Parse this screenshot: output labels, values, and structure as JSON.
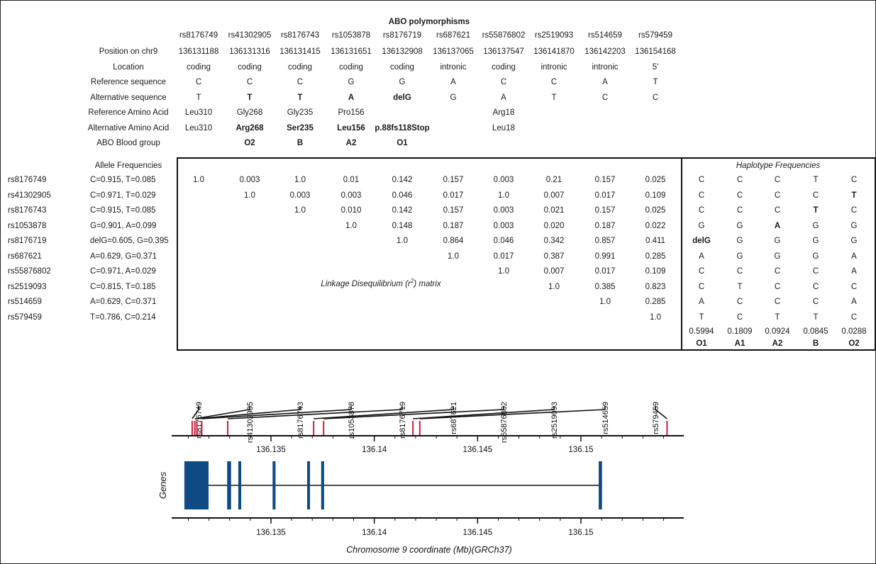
{
  "title": "ABO polymorphisms",
  "snps": [
    "rs8176749",
    "rs41302905",
    "rs8176743",
    "rs1053878",
    "rs8176719",
    "rs687621",
    "rs55876802",
    "rs2519093",
    "rs514659",
    "rs579459"
  ],
  "header_rows": [
    {
      "label": "Position on chr9",
      "values": [
        "136131188",
        "136131316",
        "136131415",
        "136131651",
        "136132908",
        "136137065",
        "136137547",
        "136141870",
        "136142203",
        "136154168"
      ],
      "bold": []
    },
    {
      "label": "Location",
      "values": [
        "coding",
        "coding",
        "coding",
        "coding",
        "coding",
        "intronic",
        "coding",
        "intronic",
        "intronic",
        "5'"
      ],
      "bold": []
    },
    {
      "label": "Reference sequence",
      "values": [
        "C",
        "C",
        "C",
        "G",
        "G",
        "A",
        "C",
        "C",
        "A",
        "T"
      ],
      "bold": []
    },
    {
      "label": "Alternative sequence",
      "values": [
        "T",
        "T",
        "T",
        "A",
        "delG",
        "G",
        "A",
        "T",
        "C",
        "C"
      ],
      "bold": [
        1,
        2,
        3,
        4
      ]
    },
    {
      "label": "Reference Amino Acid",
      "values": [
        "Leu310",
        "Gly268",
        "Gly235",
        "Pro156",
        "",
        "",
        "Arg18",
        "",
        "",
        ""
      ],
      "bold": []
    },
    {
      "label": "Alternative Amino Acid",
      "values": [
        "Leu310",
        "Arg268",
        "Ser235",
        "Leu156",
        "p.88fs118Stop",
        "",
        "Leu18",
        "",
        "",
        ""
      ],
      "bold": [
        1,
        2,
        3,
        4
      ]
    },
    {
      "label": "ABO Blood group",
      "values": [
        "",
        "O2",
        "B",
        "A2",
        "O1",
        "",
        "",
        "",
        "",
        ""
      ],
      "bold": [
        1,
        2,
        3,
        4
      ]
    }
  ],
  "allele_header": "Allele Frequencies",
  "allele_frequencies": [
    "C=0.915, T=0.085",
    "C=0.971, T=0.029",
    "C=0.915, T=0.085",
    "G=0.901, A=0.099",
    "delG=0.605, G=0.395",
    "A=0.629, G=0.371",
    "C=0.971, A=0.029",
    "C=0.815, T=0.185",
    "A=0.629, C=0.371",
    "T=0.786, C=0.214"
  ],
  "ld_matrix": [
    [
      "1.0",
      "0.003",
      "1.0",
      "0.01",
      "0.142",
      "0.157",
      "0.003",
      "0.21",
      "0.157",
      "0.025"
    ],
    [
      "",
      "1.0",
      "0.003",
      "0.003",
      "0.046",
      "0.017",
      "1.0",
      "0.007",
      "0.017",
      "0.109"
    ],
    [
      "",
      "",
      "1.0",
      "0.010",
      "0.142",
      "0.157",
      "0.003",
      "0.021",
      "0.157",
      "0.025"
    ],
    [
      "",
      "",
      "",
      "1.0",
      "0.148",
      "0.187",
      "0.003",
      "0.020",
      "0.187",
      "0.022"
    ],
    [
      "",
      "",
      "",
      "",
      "1.0",
      "0.864",
      "0.046",
      "0.342",
      "0.857",
      "0.411"
    ],
    [
      "",
      "",
      "",
      "",
      "",
      "1.0",
      "0.017",
      "0.387",
      "0.991",
      "0.285"
    ],
    [
      "",
      "",
      "",
      "",
      "",
      "",
      "1.0",
      "0.007",
      "0.017",
      "0.109"
    ],
    [
      "",
      "",
      "",
      "",
      "",
      "",
      "",
      "1.0",
      "0.385",
      "0.823"
    ],
    [
      "",
      "",
      "",
      "",
      "",
      "",
      "",
      "",
      "1.0",
      "0.285"
    ],
    [
      "",
      "",
      "",
      "",
      "",
      "",
      "",
      "",
      "",
      "1.0"
    ]
  ],
  "ld_label_pre": "Linkage Disequilibrium (r",
  "ld_label_sup": "2",
  "ld_label_post": ") matrix",
  "haplotype_title": "Haplotype Frequencies",
  "haplotypes": [
    [
      "C",
      "C",
      "C",
      "T",
      "C"
    ],
    [
      "C",
      "C",
      "C",
      "C",
      "T"
    ],
    [
      "C",
      "C",
      "C",
      "T",
      "C"
    ],
    [
      "G",
      "G",
      "A",
      "G",
      "G"
    ],
    [
      "delG",
      "G",
      "G",
      "G",
      "G"
    ],
    [
      "A",
      "G",
      "G",
      "G",
      "A"
    ],
    [
      "C",
      "C",
      "C",
      "C",
      "A"
    ],
    [
      "C",
      "T",
      "C",
      "C",
      "C"
    ],
    [
      "A",
      "C",
      "C",
      "C",
      "A"
    ],
    [
      "T",
      "C",
      "T",
      "T",
      "C"
    ]
  ],
  "haplotype_bold": [
    [
      1,
      4
    ],
    [
      2,
      3
    ],
    [
      3,
      2
    ],
    [
      4,
      0
    ]
  ],
  "haplotype_freqs": [
    "0.5994",
    "0.1809",
    "0.0924",
    "0.0845",
    "0.0288"
  ],
  "haplotype_groups": [
    "O1",
    "A1",
    "A2",
    "B",
    "O2"
  ],
  "snp_positions_mb": [
    136.131188,
    136.131316,
    136.131415,
    136.131651,
    136.132908,
    136.137065,
    136.137547,
    136.14187,
    136.142203,
    136.154168
  ],
  "axis_ticks": [
    "136.135",
    "136.14",
    "136.145",
    "136.15"
  ],
  "axis_tick_values": [
    136.135,
    136.14,
    136.145,
    136.15
  ],
  "genes_label": "Genes",
  "axis_title": "Chromosome 9 coordinate (Mb)(GRCh37)",
  "colors": {
    "snp_marker": "#cc1f3c",
    "exon": "#0e4a83",
    "line": "#111111"
  },
  "exons_mb": [
    [
      136.13081,
      136.13198
    ],
    [
      136.13288,
      136.13307
    ],
    [
      136.13342,
      136.13356
    ],
    [
      136.13508,
      136.13522
    ],
    [
      136.13675,
      136.13689
    ],
    [
      136.13743,
      136.13757
    ],
    [
      136.15086,
      136.15102
    ]
  ],
  "gene_span_mb": [
    136.13081,
    136.15102
  ]
}
